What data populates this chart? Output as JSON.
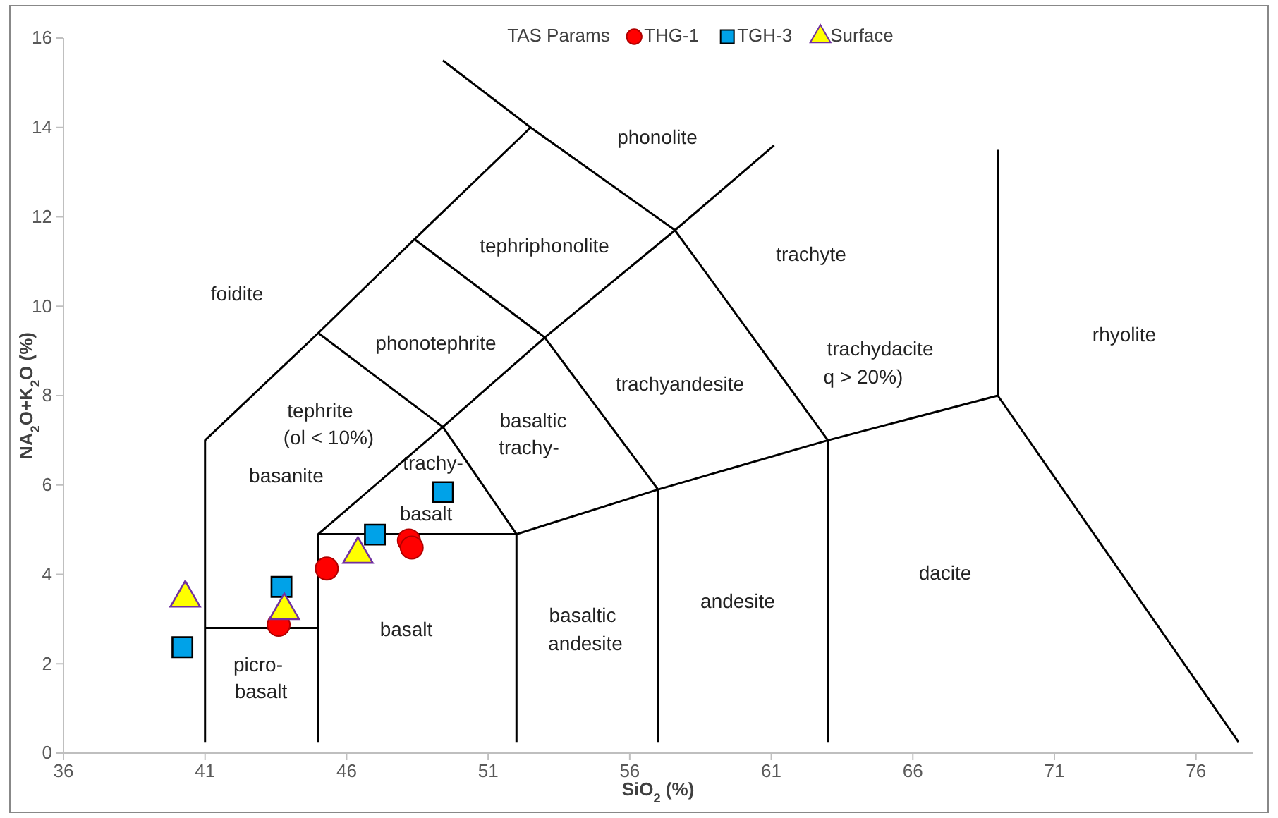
{
  "chart_data": {
    "type": "scatter",
    "xlabel": "SiO$_{2}$ (%)",
    "ylabel": "NA$_{2}$O+K$_{2}$O (%)",
    "legend_title": "TAS Params",
    "legend": "top",
    "xlim": [
      36,
      78
    ],
    "xticks": [
      36,
      41,
      46,
      51,
      56,
      61,
      66,
      71,
      76
    ],
    "ylim": [
      0,
      16
    ],
    "yticks": [
      0,
      2,
      4,
      6,
      8,
      10,
      12,
      14,
      16
    ],
    "series": [
      {
        "type": "line",
        "color": "#000000",
        "x": [
          41,
          41,
          45,
          48.4,
          52.5
        ],
        "values": [
          0.25,
          7,
          9.4,
          11.5,
          14
        ]
      },
      {
        "type": "line",
        "color": "#000000",
        "x": [
          49.4,
          52.5,
          57.6,
          63,
          69,
          77.5
        ],
        "values": [
          15.5,
          14,
          11.7,
          7,
          8,
          0.25
        ]
      },
      {
        "type": "line",
        "color": "#000000",
        "x": [
          45,
          49.4,
          53,
          48.4
        ],
        "values": [
          9.4,
          7.3,
          9.3,
          11.5
        ]
      },
      {
        "type": "line",
        "color": "#000000",
        "x": [
          53,
          57.6,
          61.1
        ],
        "values": [
          9.3,
          11.7,
          13.6
        ]
      },
      {
        "type": "line",
        "color": "#000000",
        "x": [
          53,
          57,
          63
        ],
        "values": [
          9.3,
          5.9,
          7
        ]
      },
      {
        "type": "line",
        "color": "#000000",
        "x": [
          57,
          57
        ],
        "values": [
          5.9,
          0.25
        ]
      },
      {
        "type": "line",
        "color": "#000000",
        "x": [
          63,
          63
        ],
        "values": [
          7,
          0.25
        ]
      },
      {
        "type": "line",
        "color": "#000000",
        "x": [
          69,
          69
        ],
        "values": [
          8,
          13.5
        ]
      },
      {
        "type": "line",
        "color": "#000000",
        "x": [
          45,
          49.4,
          52,
          57
        ],
        "values": [
          4.9,
          7.3,
          4.9,
          5.9
        ]
      },
      {
        "type": "line",
        "color": "#000000",
        "x": [
          45,
          45,
          52,
          52
        ],
        "values": [
          0.25,
          4.9,
          4.9,
          0.25
        ]
      },
      {
        "type": "line",
        "color": "#000000",
        "x": [
          41,
          45
        ],
        "values": [
          2.8,
          2.8
        ]
      },
      {
        "name": "THG-1",
        "color": "#ff0000",
        "marker": "circle",
        "x": [
          43.6,
          45.3,
          48.2,
          48.3
        ],
        "values": [
          2.87,
          4.13,
          4.76,
          4.6
        ]
      },
      {
        "name": "TGH-3",
        "color": "#00a2e8",
        "marker": "square",
        "x": [
          40.2,
          43.7,
          47,
          49.4
        ],
        "values": [
          2.37,
          3.72,
          4.89,
          5.84
        ]
      },
      {
        "name": "Surface",
        "color": "#ffff00",
        "marker": "triangle",
        "x": [
          40.3,
          43.8,
          46.4
        ],
        "values": [
          3.47,
          3.19,
          4.45
        ]
      }
    ],
    "annotations": [
      "phonolite",
      "tephriphonolite",
      "trachyte",
      "foidite",
      "phonotephrite",
      "trachydacite",
      "q > 20%)",
      "rhyolite",
      "trachyandesite",
      "tephrite",
      "(ol < 10%)",
      "basaltic",
      "trachy-",
      "basanite",
      "trachy-",
      "basalt",
      "dacite",
      "andesite",
      "basalt",
      "basaltic",
      "andesite",
      "picro-",
      "basalt"
    ]
  }
}
